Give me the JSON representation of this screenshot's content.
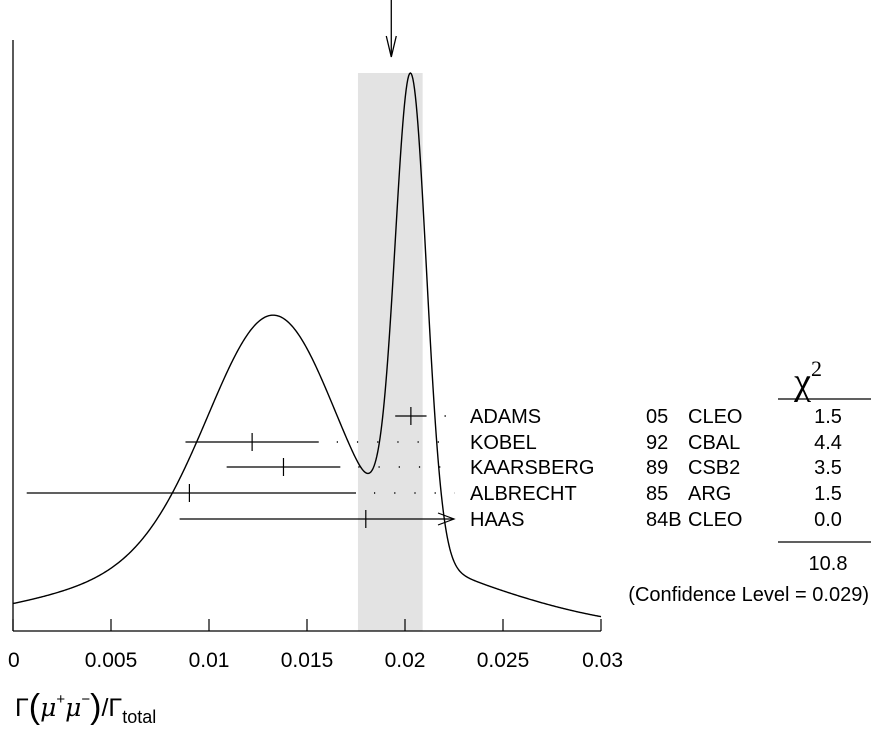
{
  "chart_data": {
    "type": "ideogram",
    "xlim": [
      0,
      0.03
    ],
    "x_ticks": [
      0,
      0.005,
      0.01,
      0.015,
      0.02,
      0.025,
      0.03
    ],
    "x_tick_labels": [
      "0",
      "0.005",
      "0.01",
      "0.015",
      "0.02",
      "0.025",
      "0.03"
    ],
    "xlabel": {
      "gamma": "Γ",
      "lparen": "(",
      "mu": "μ",
      "plus": "+",
      "minus": "−",
      "rparen": ")",
      "slash": "/Γ",
      "sub": "total"
    },
    "average_band": [
      0.0176,
      0.0209
    ],
    "arrow_x": 0.0193,
    "chi2_header": {
      "symbol": "χ",
      "exp": "2"
    },
    "measurements": [
      {
        "author": "ADAMS",
        "year": "05",
        "experiment": "CLEO",
        "chi2": "1.5",
        "value": 0.0203,
        "err_low": 0.0008,
        "err_high": 0.0008
      },
      {
        "author": "KOBEL",
        "year": "92",
        "experiment": "CBAL",
        "chi2": "4.4",
        "value": 0.0122,
        "err_low": 0.0034,
        "err_high": 0.0034
      },
      {
        "author": "KAARSBERG",
        "year": "89",
        "experiment": "CSB2",
        "chi2": "3.5",
        "value": 0.0138,
        "err_low": 0.0029,
        "err_high": 0.0029
      },
      {
        "author": "ALBRECHT",
        "year": "85",
        "experiment": "ARG",
        "chi2": "1.5",
        "value": 0.009,
        "err_low": 0.0083,
        "err_high": 0.0085
      },
      {
        "author": "HAAS",
        "year": "84B",
        "experiment": "CLEO",
        "chi2": "0.0",
        "value": 0.018,
        "err_low": 0.0095,
        "err_high": 0.0045,
        "arrow_high": true
      }
    ],
    "chi2_total": "10.8",
    "confidence_level": "(Confidence Level = 0.029)"
  }
}
